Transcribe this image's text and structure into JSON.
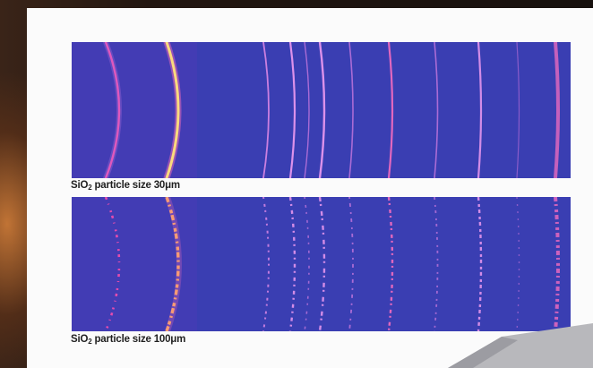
{
  "panels": [
    {
      "caption_prefix": "SiO",
      "caption_subscript": "2",
      "caption_suffix": " particle size 30μm",
      "texture": "smooth"
    },
    {
      "caption_prefix": "SiO",
      "caption_subscript": "2",
      "caption_suffix": " particle size 100μm",
      "texture": "spotty"
    }
  ],
  "colors": {
    "detector_background": "#3a3eb2",
    "ring_bright": "#ffe27a",
    "ring_mid": "#ff4fae",
    "ring_dim": "#d27be6",
    "panel_background": "#fbfbfb",
    "caption_text": "#1f1f1f"
  }
}
